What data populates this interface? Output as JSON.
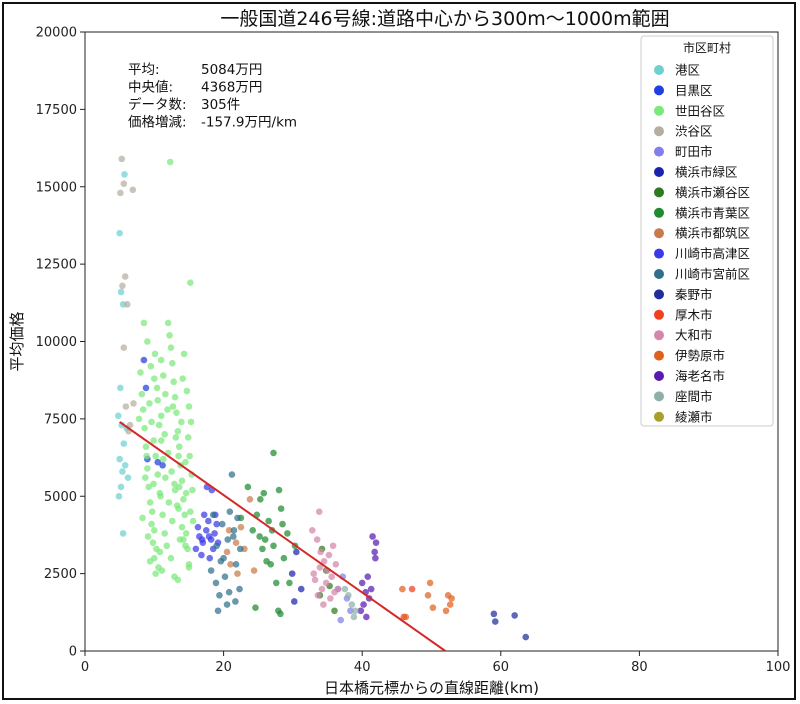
{
  "chart_data": {
    "type": "scatter",
    "title": "一般国道246号線:道路中心から300m〜1000m範囲",
    "xlabel": "日本橋元標からの直線距離(km)",
    "ylabel": "平均価格",
    "xlim": [
      0,
      100
    ],
    "ylim": [
      0,
      20000
    ],
    "xticks": [
      "0",
      "20",
      "40",
      "60",
      "80",
      "100"
    ],
    "yticks": [
      "0",
      "2500",
      "5000",
      "7500",
      "10000",
      "12500",
      "15000",
      "17500",
      "20000"
    ],
    "grid": false,
    "legend_placement": "top-right",
    "legend_title": "市区町村",
    "stats": [
      {
        "label": "平均:",
        "value": "5084万円"
      },
      {
        "label": "中央値:",
        "value": "4368万円"
      },
      {
        "label": "データ数:",
        "value": "305件"
      },
      {
        "label": "価格増減:",
        "value": "-157.9万円/km"
      }
    ],
    "trendline": {
      "color": "#d62728",
      "x": [
        5,
        52
      ],
      "y": [
        7400,
        0
      ]
    },
    "series": [
      {
        "name": "港区",
        "color": "#6fd0d0",
        "points": [
          [
            5,
            13500
          ],
          [
            5.2,
            11600
          ],
          [
            5.5,
            11200
          ],
          [
            5.1,
            8500
          ],
          [
            4.8,
            7600
          ],
          [
            5.3,
            7300
          ],
          [
            5.6,
            6700
          ],
          [
            5,
            6200
          ],
          [
            5.4,
            5800
          ],
          [
            5.2,
            5300
          ],
          [
            4.9,
            5000
          ],
          [
            5.7,
            15400
          ],
          [
            6,
            7200
          ],
          [
            5.8,
            6000
          ],
          [
            6.2,
            5600
          ],
          [
            5.5,
            3800
          ]
        ]
      },
      {
        "name": "目黒区",
        "color": "#1f3fe0",
        "points": [
          [
            8.5,
            9400
          ],
          [
            8.8,
            8500
          ],
          [
            9,
            6200
          ],
          [
            10.5,
            6100
          ],
          [
            11.2,
            6000
          ]
        ]
      },
      {
        "name": "世田谷区",
        "color": "#7be87b",
        "points": [
          [
            7.8,
            7500
          ],
          [
            8,
            9000
          ],
          [
            8.2,
            8300
          ],
          [
            8.4,
            7800
          ],
          [
            8.6,
            7200
          ],
          [
            8.8,
            6600
          ],
          [
            9,
            5900
          ],
          [
            9.2,
            5300
          ],
          [
            9.4,
            4800
          ],
          [
            9.6,
            4100
          ],
          [
            9.8,
            3500
          ],
          [
            10,
            3000
          ],
          [
            10.2,
            2500
          ],
          [
            8.5,
            10600
          ],
          [
            9,
            10000
          ],
          [
            9.5,
            9200
          ],
          [
            10,
            8800
          ],
          [
            10.5,
            8100
          ],
          [
            11,
            7600
          ],
          [
            11.5,
            7000
          ],
          [
            12,
            6400
          ],
          [
            12.5,
            5800
          ],
          [
            13,
            5200
          ],
          [
            13.5,
            4600
          ],
          [
            14,
            4000
          ],
          [
            14.5,
            3400
          ],
          [
            15,
            2800
          ],
          [
            12,
            10600
          ],
          [
            12.2,
            10200
          ],
          [
            12.4,
            9800
          ],
          [
            12.6,
            9300
          ],
          [
            12.8,
            8700
          ],
          [
            13,
            8200
          ],
          [
            13.2,
            7700
          ],
          [
            13.4,
            7100
          ],
          [
            13.6,
            6600
          ],
          [
            13.8,
            6000
          ],
          [
            14,
            5500
          ],
          [
            14.2,
            4900
          ],
          [
            14.4,
            4400
          ],
          [
            14.6,
            3800
          ],
          [
            14.8,
            3300
          ],
          [
            15,
            2700
          ],
          [
            15.2,
            11900
          ],
          [
            14.7,
            8400
          ],
          [
            15,
            7900
          ],
          [
            15.3,
            7400
          ],
          [
            14.9,
            6900
          ],
          [
            15.1,
            6300
          ],
          [
            15.4,
            5700
          ],
          [
            14.6,
            5100
          ],
          [
            15.2,
            4500
          ],
          [
            11,
            9400
          ],
          [
            11.3,
            8900
          ],
          [
            11.6,
            8300
          ],
          [
            11.9,
            7800
          ],
          [
            10.7,
            7300
          ],
          [
            11,
            6800
          ],
          [
            11.3,
            6200
          ],
          [
            11.6,
            5600
          ],
          [
            10.9,
            5000
          ],
          [
            11.2,
            4400
          ],
          [
            11.5,
            3800
          ],
          [
            10.8,
            3200
          ],
          [
            11.1,
            2600
          ],
          [
            12.3,
            15800
          ],
          [
            9.3,
            8000
          ],
          [
            9.6,
            7400
          ],
          [
            9.9,
            6800
          ],
          [
            10.2,
            6300
          ],
          [
            10.5,
            5700
          ],
          [
            10.8,
            5100
          ],
          [
            9.7,
            4500
          ],
          [
            10,
            3900
          ],
          [
            10.3,
            3300
          ],
          [
            10.6,
            2700
          ],
          [
            12.7,
            7900
          ],
          [
            13.1,
            6900
          ],
          [
            13.5,
            6300
          ],
          [
            12.9,
            5400
          ],
          [
            13.3,
            4700
          ],
          [
            12.6,
            4200
          ],
          [
            13.7,
            3600
          ],
          [
            12.4,
            3000
          ],
          [
            12.9,
            2400
          ],
          [
            14.3,
            9600
          ],
          [
            14.1,
            8800
          ],
          [
            13.9,
            7400
          ],
          [
            14.5,
            6100
          ],
          [
            13.6,
            5300
          ],
          [
            14.2,
            3600
          ],
          [
            8.3,
            4300
          ],
          [
            8.7,
            5600
          ],
          [
            9.1,
            3700
          ],
          [
            9.4,
            2900
          ],
          [
            10.1,
            9600
          ],
          [
            10.4,
            8500
          ],
          [
            11.8,
            3400
          ],
          [
            12.1,
            4800
          ],
          [
            13.4,
            2300
          ],
          [
            15.5,
            5200
          ],
          [
            15.6,
            4200
          ],
          [
            8.9,
            6300
          ],
          [
            9.9,
            5400
          ]
        ]
      },
      {
        "name": "渋谷区",
        "color": "#b5ada1",
        "points": [
          [
            5.3,
            15900
          ],
          [
            5.6,
            15100
          ],
          [
            5.1,
            14800
          ],
          [
            6.9,
            14900
          ],
          [
            5.8,
            12100
          ],
          [
            5.4,
            11800
          ],
          [
            6.1,
            11200
          ],
          [
            5.6,
            9800
          ],
          [
            5.9,
            7900
          ],
          [
            6.5,
            7300
          ],
          [
            7,
            8000
          ],
          [
            6.3,
            7100
          ]
        ]
      },
      {
        "name": "町田市",
        "color": "#8080e8",
        "points": [
          [
            37.2,
            2400
          ],
          [
            36.5,
            2000
          ],
          [
            37.8,
            1700
          ],
          [
            38.3,
            1300
          ],
          [
            36.9,
            1000
          ]
        ]
      },
      {
        "name": "横浜市緑区",
        "color": "#1a22b0",
        "points": [
          [
            30.5,
            3200
          ],
          [
            29.9,
            2500
          ],
          [
            31.2,
            2000
          ],
          [
            30.2,
            1600
          ]
        ]
      },
      {
        "name": "横浜市瀬谷区",
        "color": "#2f7a1f",
        "points": [
          [
            34.2,
            3300
          ],
          [
            34.8,
            2600
          ],
          [
            35.3,
            2100
          ],
          [
            33.9,
            1800
          ],
          [
            36,
            1300
          ]
        ]
      },
      {
        "name": "横浜市青葉区",
        "color": "#1f8a30",
        "points": [
          [
            27.2,
            6400
          ],
          [
            28,
            5200
          ],
          [
            28.3,
            4600
          ],
          [
            26.5,
            4200
          ],
          [
            25.3,
            4900
          ],
          [
            26,
            3600
          ],
          [
            27,
            3900
          ],
          [
            25.6,
            3300
          ],
          [
            27.6,
            2200
          ],
          [
            26.8,
            2800
          ],
          [
            24.6,
            1400
          ],
          [
            28.2,
            1200
          ],
          [
            27.9,
            1300
          ],
          [
            29.2,
            3800
          ],
          [
            30.3,
            3400
          ],
          [
            28.5,
            4100
          ],
          [
            25.2,
            3700
          ],
          [
            26.2,
            2900
          ],
          [
            24.2,
            3900
          ],
          [
            23.5,
            5300
          ],
          [
            24.8,
            4400
          ],
          [
            29.5,
            2200
          ],
          [
            27.2,
            3400
          ],
          [
            28.7,
            3000
          ],
          [
            25.8,
            5100
          ],
          [
            22.5,
            4300
          ]
        ]
      },
      {
        "name": "横浜市都筑区",
        "color": "#c87a4a",
        "points": [
          [
            20.5,
            3200
          ],
          [
            21,
            2800
          ],
          [
            22.5,
            4000
          ],
          [
            23.8,
            4900
          ],
          [
            21.8,
            3500
          ],
          [
            24.4,
            2600
          ],
          [
            20.8,
            3900
          ],
          [
            23,
            3300
          ],
          [
            22,
            2500
          ]
        ]
      },
      {
        "name": "川崎市高津区",
        "color": "#3a3ae8",
        "points": [
          [
            16,
            3300
          ],
          [
            16.5,
            3700
          ],
          [
            17,
            3500
          ],
          [
            17.5,
            3900
          ],
          [
            17.8,
            4200
          ],
          [
            18.2,
            3600
          ],
          [
            18.5,
            3300
          ],
          [
            18.7,
            3800
          ],
          [
            19,
            4100
          ],
          [
            17.2,
            4400
          ],
          [
            16.8,
            3100
          ],
          [
            18,
            3000
          ],
          [
            19.2,
            3500
          ],
          [
            16.3,
            4000
          ],
          [
            17.6,
            5300
          ],
          [
            18.3,
            5200
          ],
          [
            16.9,
            3600
          ],
          [
            17.9,
            3700
          ],
          [
            18.8,
            4400
          ]
        ]
      },
      {
        "name": "川崎市宮前区",
        "color": "#2f6f8a",
        "points": [
          [
            18.5,
            4400
          ],
          [
            19,
            3400
          ],
          [
            19.6,
            2900
          ],
          [
            20.2,
            2400
          ],
          [
            20.8,
            1900
          ],
          [
            21.4,
            3700
          ],
          [
            22,
            4300
          ],
          [
            21.2,
            5700
          ],
          [
            20.5,
            1500
          ],
          [
            21.7,
            1600
          ],
          [
            22.4,
            3300
          ],
          [
            19.8,
            4100
          ],
          [
            18.9,
            2200
          ],
          [
            20.9,
            4500
          ],
          [
            21.8,
            2800
          ],
          [
            19.4,
            1800
          ],
          [
            22.3,
            2000
          ],
          [
            20,
            3000
          ],
          [
            18.2,
            2600
          ],
          [
            21.5,
            3900
          ],
          [
            20.6,
            3600
          ],
          [
            19.2,
            1300
          ]
        ]
      },
      {
        "name": "秦野市",
        "color": "#1f2f9a",
        "points": [
          [
            59,
            1200
          ],
          [
            59.2,
            950
          ],
          [
            62,
            1150
          ],
          [
            63.6,
            450
          ]
        ]
      },
      {
        "name": "厚木市",
        "color": "#f04020",
        "points": [
          [
            46,
            1100
          ],
          [
            47.2,
            2000
          ]
        ]
      },
      {
        "name": "大和市",
        "color": "#d487a8",
        "points": [
          [
            33.5,
            3600
          ],
          [
            34,
            3200
          ],
          [
            34.5,
            2900
          ],
          [
            35,
            2600
          ],
          [
            33.2,
            2300
          ],
          [
            34.2,
            2000
          ],
          [
            35.4,
            1700
          ],
          [
            33.8,
            4500
          ],
          [
            35.8,
            3400
          ],
          [
            36.2,
            2800
          ],
          [
            33,
            2500
          ],
          [
            34.8,
            2200
          ],
          [
            35.6,
            2400
          ],
          [
            36.5,
            2000
          ],
          [
            32.8,
            3900
          ],
          [
            33.6,
            1800
          ],
          [
            34.4,
            1500
          ],
          [
            35.2,
            3100
          ],
          [
            36,
            1900
          ],
          [
            33.9,
            2700
          ]
        ]
      },
      {
        "name": "伊勢原市",
        "color": "#e06020",
        "points": [
          [
            45.8,
            2000
          ],
          [
            46.3,
            1100
          ],
          [
            49.8,
            2200
          ],
          [
            49.5,
            1800
          ],
          [
            52.4,
            1800
          ],
          [
            52.9,
            1700
          ],
          [
            52.7,
            1500
          ],
          [
            52.1,
            1300
          ],
          [
            50.2,
            1400
          ]
        ]
      },
      {
        "name": "海老名市",
        "color": "#5a1ab0",
        "points": [
          [
            40,
            2200
          ],
          [
            40.5,
            1900
          ],
          [
            41,
            1700
          ],
          [
            41.5,
            3700
          ],
          [
            42,
            3500
          ],
          [
            41.8,
            3200
          ],
          [
            40.8,
            2400
          ],
          [
            40.2,
            1500
          ],
          [
            41.3,
            2000
          ],
          [
            39.8,
            1300
          ],
          [
            41.9,
            3000
          ],
          [
            40.6,
            1100
          ]
        ]
      },
      {
        "name": "座間市",
        "color": "#8fb0a8",
        "points": [
          [
            38,
            1800
          ],
          [
            38.5,
            1500
          ],
          [
            39,
            1300
          ],
          [
            37.5,
            2000
          ],
          [
            38.8,
            1100
          ]
        ]
      },
      {
        "name": "綾瀬市",
        "color": "#a8a02a",
        "points": []
      }
    ]
  }
}
